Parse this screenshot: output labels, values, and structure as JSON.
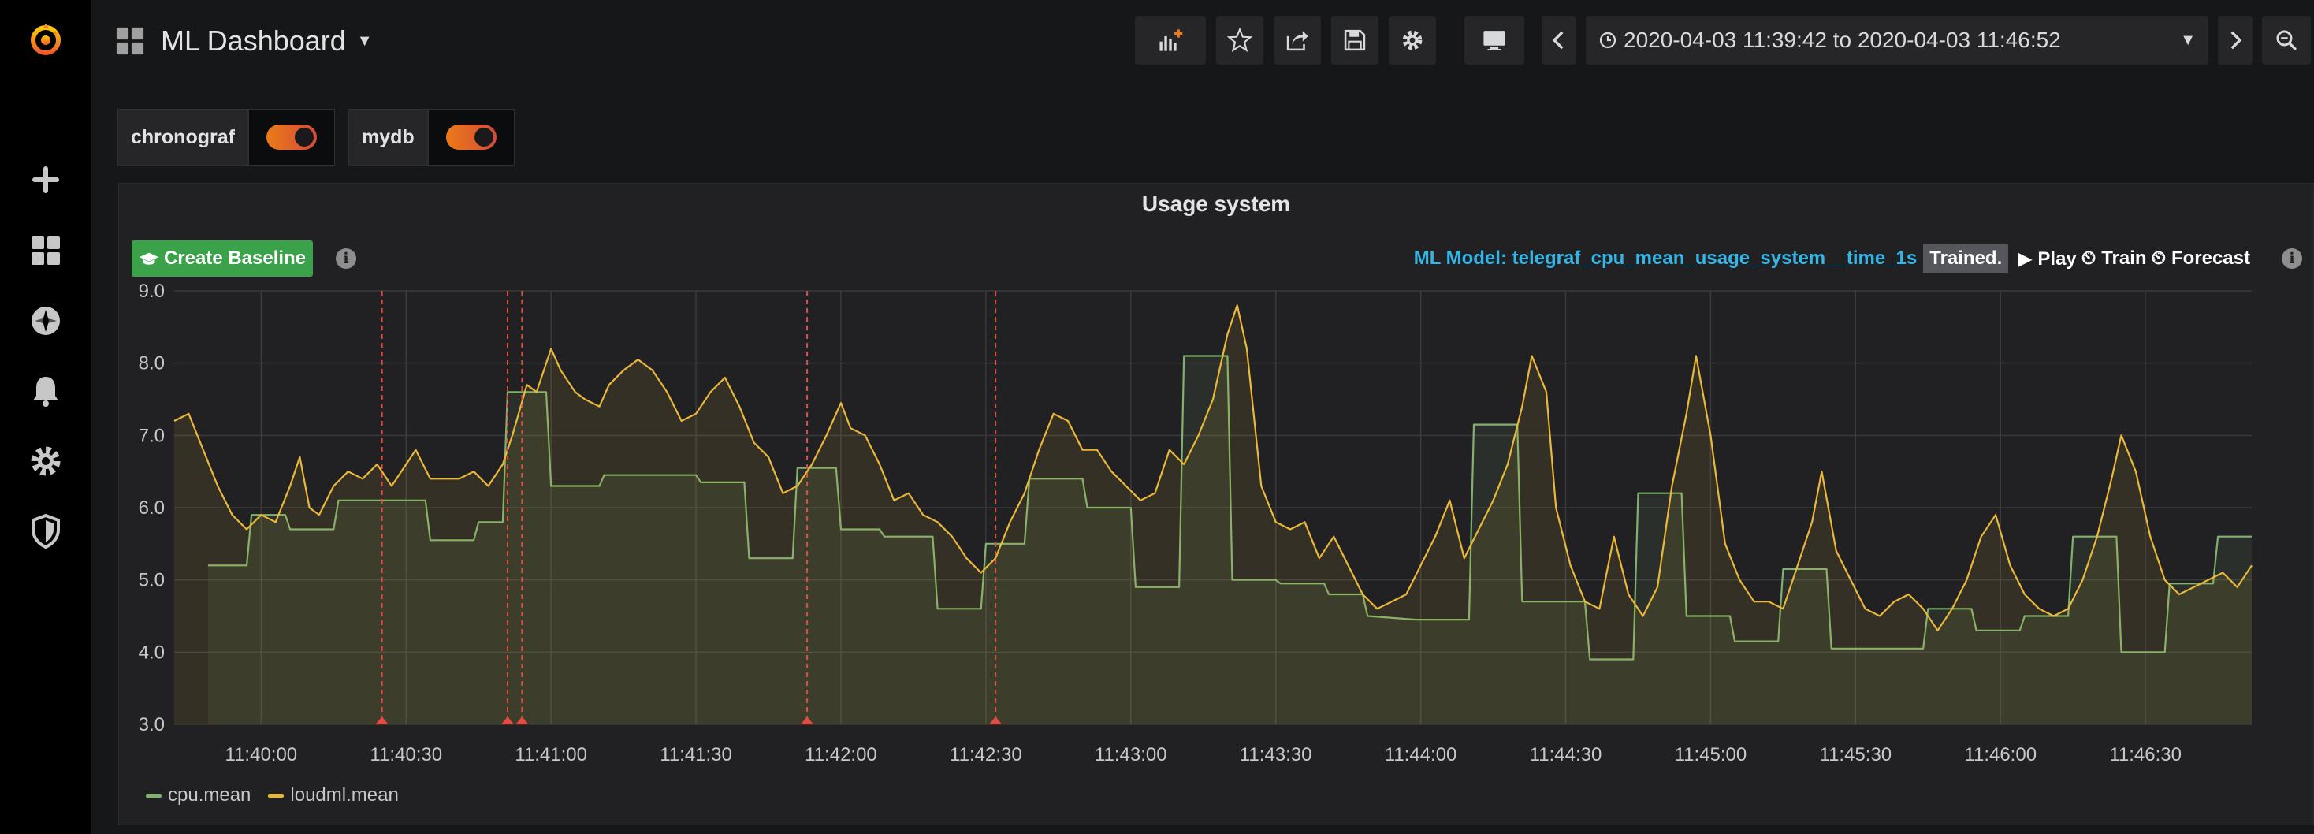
{
  "dashboard": {
    "title": "ML Dashboard"
  },
  "sidebar": {
    "icons": [
      "grafana-logo-icon",
      "plus-icon",
      "dashboards-icon",
      "explore-icon",
      "alerting-bell-icon",
      "configuration-gear-icon",
      "server-admin-shield-icon"
    ]
  },
  "toolbar": {
    "icons": [
      "add-panel-icon",
      "star-icon",
      "share-icon",
      "save-icon",
      "settings-gear-icon",
      "tv-mode-icon",
      "time-back-icon",
      "time-forward-icon",
      "zoom-out-icon",
      "refresh-icon",
      "refresh-dropdown-icon"
    ],
    "time_range": "2020-04-03 11:39:42 to 2020-04-03 11:46:52"
  },
  "variables": [
    {
      "label": "chronograf",
      "enabled": true
    },
    {
      "label": "mydb",
      "enabled": true
    }
  ],
  "panel": {
    "title": "Usage system",
    "create_baseline_label": "Create Baseline",
    "ml_model_label": "ML Model: telegraf_cpu_mean_usage_system__time_1s",
    "ml_status": "Trained.",
    "play_label": "Play",
    "train_label": "Train",
    "forecast_label": "Forecast"
  },
  "colors": {
    "cpu": "#7eb26d",
    "loudml": "#eab839",
    "anomaly": "#e24d42",
    "create_baseline": "#3aa34a",
    "ml_model": "#33b5e5"
  },
  "chart_data": {
    "type": "line",
    "title": "Usage system",
    "x_range": [
      "11:39:42",
      "11:46:52"
    ],
    "ylim": [
      3.0,
      9.0
    ],
    "y_ticks": [
      "3.0",
      "4.0",
      "5.0",
      "6.0",
      "7.0",
      "8.0",
      "9.0"
    ],
    "x_ticks": [
      "11:40:00",
      "11:40:30",
      "11:41:00",
      "11:41:30",
      "11:42:00",
      "11:42:30",
      "11:43:00",
      "11:43:30",
      "11:44:00",
      "11:44:30",
      "11:45:00",
      "11:45:30",
      "11:46:00",
      "11:46:30"
    ],
    "grid": true,
    "legend_position": "bottom-left",
    "anomalies": [
      "11:40:25",
      "11:40:51",
      "11:40:54",
      "11:41:53",
      "11:42:32"
    ],
    "series": [
      {
        "name": "cpu.mean",
        "points": [
          [
            "11:39:49",
            5.2
          ],
          [
            "11:39:57",
            5.2
          ],
          [
            "11:39:58",
            5.9
          ],
          [
            "11:40:05",
            5.9
          ],
          [
            "11:40:06",
            5.7
          ],
          [
            "11:40:15",
            5.7
          ],
          [
            "11:40:16",
            6.1
          ],
          [
            "11:40:24",
            6.1
          ],
          [
            "11:40:25",
            6.1
          ],
          [
            "11:40:34",
            6.1
          ],
          [
            "11:40:35",
            5.55
          ],
          [
            "11:40:44",
            5.55
          ],
          [
            "11:40:45",
            5.8
          ],
          [
            "11:40:50",
            5.8
          ],
          [
            "11:40:51",
            7.6
          ],
          [
            "11:40:59",
            7.6
          ],
          [
            "11:41:00",
            6.3
          ],
          [
            "11:41:10",
            6.3
          ],
          [
            "11:41:11",
            6.45
          ],
          [
            "11:41:30",
            6.45
          ],
          [
            "11:41:31",
            6.35
          ],
          [
            "11:41:40",
            6.35
          ],
          [
            "11:41:41",
            5.3
          ],
          [
            "11:41:50",
            5.3
          ],
          [
            "11:41:51",
            6.55
          ],
          [
            "11:41:59",
            6.55
          ],
          [
            "11:42:00",
            5.7
          ],
          [
            "11:42:08",
            5.7
          ],
          [
            "11:42:09",
            5.6
          ],
          [
            "11:42:19",
            5.6
          ],
          [
            "11:42:20",
            4.6
          ],
          [
            "11:42:29",
            4.6
          ],
          [
            "11:42:30",
            5.5
          ],
          [
            "11:42:38",
            5.5
          ],
          [
            "11:42:39",
            6.4
          ],
          [
            "11:42:50",
            6.4
          ],
          [
            "11:42:51",
            6.0
          ],
          [
            "11:43:00",
            6.0
          ],
          [
            "11:43:01",
            4.9
          ],
          [
            "11:43:10",
            4.9
          ],
          [
            "11:43:11",
            8.1
          ],
          [
            "11:43:20",
            8.1
          ],
          [
            "11:43:21",
            5.0
          ],
          [
            "11:43:30",
            5.0
          ],
          [
            "11:43:31",
            4.95
          ],
          [
            "11:43:40",
            4.95
          ],
          [
            "11:43:41",
            4.8
          ],
          [
            "11:43:48",
            4.8
          ],
          [
            "11:43:49",
            4.5
          ],
          [
            "11:43:59",
            4.45
          ],
          [
            "11:44:10",
            4.45
          ],
          [
            "11:44:11",
            7.15
          ],
          [
            "11:44:20",
            7.15
          ],
          [
            "11:44:21",
            4.7
          ],
          [
            "11:44:34",
            4.7
          ],
          [
            "11:44:35",
            3.9
          ],
          [
            "11:44:44",
            3.9
          ],
          [
            "11:44:45",
            6.2
          ],
          [
            "11:44:54",
            6.2
          ],
          [
            "11:44:55",
            4.5
          ],
          [
            "11:45:04",
            4.5
          ],
          [
            "11:45:05",
            4.15
          ],
          [
            "11:45:14",
            4.15
          ],
          [
            "11:45:15",
            5.15
          ],
          [
            "11:45:24",
            5.15
          ],
          [
            "11:45:25",
            4.05
          ],
          [
            "11:45:44",
            4.05
          ],
          [
            "11:45:45",
            4.6
          ],
          [
            "11:45:54",
            4.6
          ],
          [
            "11:45:55",
            4.3
          ],
          [
            "11:46:04",
            4.3
          ],
          [
            "11:46:05",
            4.5
          ],
          [
            "11:46:14",
            4.5
          ],
          [
            "11:46:15",
            5.6
          ],
          [
            "11:46:24",
            5.6
          ],
          [
            "11:46:25",
            4.0
          ],
          [
            "11:46:34",
            4.0
          ],
          [
            "11:46:35",
            4.95
          ],
          [
            "11:46:44",
            4.95
          ],
          [
            "11:46:45",
            5.6
          ],
          [
            "11:46:52",
            5.6
          ]
        ]
      },
      {
        "name": "loudml.mean",
        "points": [
          [
            "11:39:42",
            7.2
          ],
          [
            "11:39:45",
            7.3
          ],
          [
            "11:39:48",
            6.8
          ],
          [
            "11:39:51",
            6.3
          ],
          [
            "11:39:54",
            5.9
          ],
          [
            "11:39:57",
            5.7
          ],
          [
            "11:40:00",
            5.9
          ],
          [
            "11:40:03",
            5.8
          ],
          [
            "11:40:06",
            6.3
          ],
          [
            "11:40:08",
            6.7
          ],
          [
            "11:40:10",
            6.0
          ],
          [
            "11:40:12",
            5.9
          ],
          [
            "11:40:15",
            6.3
          ],
          [
            "11:40:18",
            6.5
          ],
          [
            "11:40:21",
            6.4
          ],
          [
            "11:40:24",
            6.6
          ],
          [
            "11:40:27",
            6.3
          ],
          [
            "11:40:30",
            6.6
          ],
          [
            "11:40:32",
            6.8
          ],
          [
            "11:40:35",
            6.4
          ],
          [
            "11:40:38",
            6.4
          ],
          [
            "11:40:41",
            6.4
          ],
          [
            "11:40:44",
            6.5
          ],
          [
            "11:40:47",
            6.3
          ],
          [
            "11:40:50",
            6.6
          ],
          [
            "11:40:52",
            7.0
          ],
          [
            "11:40:55",
            7.7
          ],
          [
            "11:40:57",
            7.6
          ],
          [
            "11:41:00",
            8.2
          ],
          [
            "11:41:02",
            7.9
          ],
          [
            "11:41:05",
            7.6
          ],
          [
            "11:41:07",
            7.5
          ],
          [
            "11:41:10",
            7.4
          ],
          [
            "11:41:12",
            7.7
          ],
          [
            "11:41:15",
            7.9
          ],
          [
            "11:41:18",
            8.05
          ],
          [
            "11:41:21",
            7.9
          ],
          [
            "11:41:24",
            7.6
          ],
          [
            "11:41:27",
            7.2
          ],
          [
            "11:41:30",
            7.3
          ],
          [
            "11:41:33",
            7.6
          ],
          [
            "11:41:36",
            7.8
          ],
          [
            "11:41:39",
            7.4
          ],
          [
            "11:41:42",
            6.9
          ],
          [
            "11:41:45",
            6.7
          ],
          [
            "11:41:48",
            6.2
          ],
          [
            "11:41:51",
            6.3
          ],
          [
            "11:41:54",
            6.6
          ],
          [
            "11:41:57",
            7.0
          ],
          [
            "11:42:00",
            7.45
          ],
          [
            "11:42:02",
            7.1
          ],
          [
            "11:42:05",
            7.0
          ],
          [
            "11:42:08",
            6.6
          ],
          [
            "11:42:11",
            6.1
          ],
          [
            "11:42:14",
            6.2
          ],
          [
            "11:42:17",
            5.9
          ],
          [
            "11:42:20",
            5.8
          ],
          [
            "11:42:23",
            5.6
          ],
          [
            "11:42:26",
            5.3
          ],
          [
            "11:42:29",
            5.1
          ],
          [
            "11:42:32",
            5.3
          ],
          [
            "11:42:35",
            5.8
          ],
          [
            "11:42:38",
            6.2
          ],
          [
            "11:42:41",
            6.8
          ],
          [
            "11:42:44",
            7.3
          ],
          [
            "11:42:47",
            7.2
          ],
          [
            "11:42:50",
            6.8
          ],
          [
            "11:42:53",
            6.8
          ],
          [
            "11:42:56",
            6.5
          ],
          [
            "11:42:59",
            6.3
          ],
          [
            "11:43:02",
            6.1
          ],
          [
            "11:43:05",
            6.2
          ],
          [
            "11:43:08",
            6.8
          ],
          [
            "11:43:11",
            6.6
          ],
          [
            "11:43:14",
            7.0
          ],
          [
            "11:43:17",
            7.5
          ],
          [
            "11:43:20",
            8.4
          ],
          [
            "11:43:22",
            8.8
          ],
          [
            "11:43:24",
            8.2
          ],
          [
            "11:43:27",
            6.3
          ],
          [
            "11:43:30",
            5.8
          ],
          [
            "11:43:33",
            5.7
          ],
          [
            "11:43:36",
            5.8
          ],
          [
            "11:43:39",
            5.3
          ],
          [
            "11:43:42",
            5.6
          ],
          [
            "11:43:45",
            5.2
          ],
          [
            "11:43:48",
            4.8
          ],
          [
            "11:43:51",
            4.6
          ],
          [
            "11:43:54",
            4.7
          ],
          [
            "11:43:57",
            4.8
          ],
          [
            "11:44:00",
            5.2
          ],
          [
            "11:44:03",
            5.6
          ],
          [
            "11:44:06",
            6.1
          ],
          [
            "11:44:09",
            5.3
          ],
          [
            "11:44:12",
            5.7
          ],
          [
            "11:44:15",
            6.1
          ],
          [
            "11:44:18",
            6.6
          ],
          [
            "11:44:21",
            7.4
          ],
          [
            "11:44:23",
            8.1
          ],
          [
            "11:44:26",
            7.6
          ],
          [
            "11:44:28",
            6.0
          ],
          [
            "11:44:31",
            5.2
          ],
          [
            "11:44:34",
            4.7
          ],
          [
            "11:44:37",
            4.6
          ],
          [
            "11:44:40",
            5.6
          ],
          [
            "11:44:43",
            4.8
          ],
          [
            "11:44:46",
            4.5
          ],
          [
            "11:44:49",
            4.9
          ],
          [
            "11:44:52",
            6.3
          ],
          [
            "11:44:55",
            7.3
          ],
          [
            "11:44:57",
            8.1
          ],
          [
            "11:45:00",
            7.0
          ],
          [
            "11:45:03",
            5.5
          ],
          [
            "11:45:06",
            5.0
          ],
          [
            "11:45:09",
            4.7
          ],
          [
            "11:45:12",
            4.7
          ],
          [
            "11:45:15",
            4.6
          ],
          [
            "11:45:18",
            5.2
          ],
          [
            "11:45:21",
            5.8
          ],
          [
            "11:45:23",
            6.5
          ],
          [
            "11:45:26",
            5.4
          ],
          [
            "11:45:29",
            5.0
          ],
          [
            "11:45:32",
            4.6
          ],
          [
            "11:45:35",
            4.5
          ],
          [
            "11:45:38",
            4.7
          ],
          [
            "11:45:41",
            4.8
          ],
          [
            "11:45:44",
            4.6
          ],
          [
            "11:45:47",
            4.3
          ],
          [
            "11:45:50",
            4.6
          ],
          [
            "11:45:53",
            5.0
          ],
          [
            "11:45:56",
            5.6
          ],
          [
            "11:45:59",
            5.9
          ],
          [
            "11:46:02",
            5.2
          ],
          [
            "11:46:05",
            4.8
          ],
          [
            "11:46:08",
            4.6
          ],
          [
            "11:46:11",
            4.5
          ],
          [
            "11:46:14",
            4.6
          ],
          [
            "11:46:17",
            5.0
          ],
          [
            "11:46:20",
            5.6
          ],
          [
            "11:46:23",
            6.4
          ],
          [
            "11:46:25",
            7.0
          ],
          [
            "11:46:28",
            6.5
          ],
          [
            "11:46:31",
            5.6
          ],
          [
            "11:46:34",
            5.0
          ],
          [
            "11:46:37",
            4.8
          ],
          [
            "11:46:40",
            4.9
          ],
          [
            "11:46:43",
            5.0
          ],
          [
            "11:46:46",
            5.1
          ],
          [
            "11:46:49",
            4.9
          ],
          [
            "11:46:52",
            5.2
          ]
        ]
      }
    ]
  }
}
